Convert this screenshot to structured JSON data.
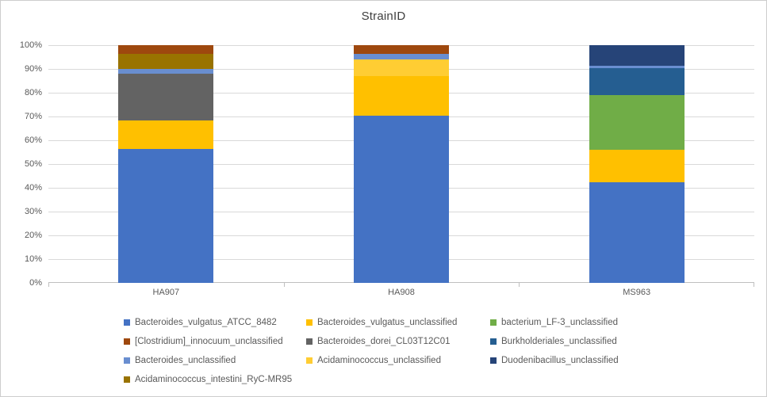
{
  "chart_data": {
    "type": "bar",
    "stacked": true,
    "percent_stacked": true,
    "title": "StrainID",
    "xlabel": "",
    "ylabel": "",
    "ylim": [
      0,
      100
    ],
    "grid": "horizontal",
    "legend_position": "bottom",
    "categories": [
      "HA907",
      "HA908",
      "MS963"
    ],
    "y_ticks": [
      "0%",
      "10%",
      "20%",
      "30%",
      "40%",
      "50%",
      "60%",
      "70%",
      "80%",
      "90%",
      "100%"
    ],
    "series": [
      {
        "name": "Bacteroides_vulgatus_ATCC_8482",
        "color": "#4472C4",
        "values": [
          56.5,
          70.5,
          42.5
        ]
      },
      {
        "name": "Bacteroides_vulgatus_unclassified",
        "color": "#FFC000",
        "values": [
          12.0,
          16.5,
          13.5
        ]
      },
      {
        "name": "bacterium_LF-3_unclassified",
        "color": "#70AD47",
        "values": [
          0,
          0,
          23.0
        ]
      },
      {
        "name": "Bacteroides_dorei_CL03T12C01",
        "color": "#636363",
        "values": [
          19.5,
          0,
          0
        ]
      },
      {
        "name": "Burkholderiales_unclassified",
        "color": "#255E91",
        "values": [
          0,
          0,
          11.5
        ]
      },
      {
        "name": "Acidaminococcus_unclassified",
        "color": "#FFCD33",
        "values": [
          0,
          7.0,
          0
        ]
      },
      {
        "name": "Bacteroides_unclassified",
        "color": "#698ED0",
        "values": [
          2.0,
          2.5,
          1.0
        ]
      },
      {
        "name": "Duodenibacillus_unclassified",
        "color": "#264478",
        "values": [
          0,
          0,
          8.5
        ]
      },
      {
        "name": "Acidaminococcus_intestini_RyC-MR95",
        "color": "#997300",
        "values": [
          6.5,
          0,
          0
        ]
      },
      {
        "name": "[Clostridium]_innocuum_unclassified",
        "color": "#9E480E",
        "values": [
          3.5,
          3.5,
          0
        ]
      }
    ]
  },
  "legend": {
    "items": [
      {
        "label": "Bacteroides_vulgatus_ATCC_8482",
        "color": "#4472C4"
      },
      {
        "label": "Bacteroides_vulgatus_unclassified",
        "color": "#FFC000"
      },
      {
        "label": "bacterium_LF-3_unclassified",
        "color": "#70AD47"
      },
      {
        "label": "[Clostridium]_innocuum_unclassified",
        "color": "#9E480E"
      },
      {
        "label": "Bacteroides_dorei_CL03T12C01",
        "color": "#636363"
      },
      {
        "label": "Burkholderiales_unclassified",
        "color": "#255E91"
      },
      {
        "label": "Bacteroides_unclassified",
        "color": "#698ED0"
      },
      {
        "label": "Acidaminococcus_unclassified",
        "color": "#FFCD33"
      },
      {
        "label": "Duodenibacillus_unclassified",
        "color": "#264478"
      },
      {
        "label": "Acidaminococcus_intestini_RyC-MR95",
        "color": "#997300"
      }
    ]
  }
}
